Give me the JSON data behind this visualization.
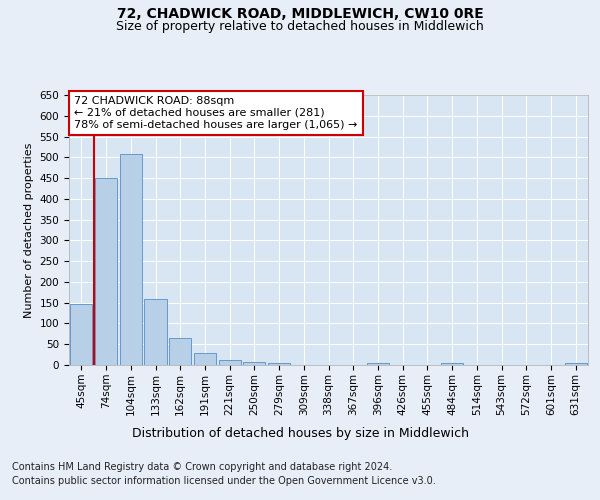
{
  "title": "72, CHADWICK ROAD, MIDDLEWICH, CW10 0RE",
  "subtitle": "Size of property relative to detached houses in Middlewich",
  "xlabel": "Distribution of detached houses by size in Middlewich",
  "ylabel": "Number of detached properties",
  "footer_line1": "Contains HM Land Registry data © Crown copyright and database right 2024.",
  "footer_line2": "Contains public sector information licensed under the Open Government Licence v3.0.",
  "categories": [
    "45sqm",
    "74sqm",
    "104sqm",
    "133sqm",
    "162sqm",
    "191sqm",
    "221sqm",
    "250sqm",
    "279sqm",
    "309sqm",
    "338sqm",
    "367sqm",
    "396sqm",
    "426sqm",
    "455sqm",
    "484sqm",
    "514sqm",
    "543sqm",
    "572sqm",
    "601sqm",
    "631sqm"
  ],
  "values": [
    148,
    450,
    507,
    158,
    65,
    30,
    13,
    7,
    5,
    0,
    0,
    0,
    5,
    0,
    0,
    5,
    0,
    0,
    0,
    0,
    5
  ],
  "bar_color": "#b8cfe8",
  "bar_edge_color": "#6699cc",
  "property_label": "72 CHADWICK ROAD: 88sqm",
  "annotation_line1": "← 21% of detached houses are smaller (281)",
  "annotation_line2": "78% of semi-detached houses are larger (1,065) →",
  "ylim_max": 650,
  "ytick_step": 50,
  "bg_color": "#e8eef8",
  "plot_bg_color": "#d8e5f3",
  "grid_color": "#ffffff",
  "annotation_box_facecolor": "#ffffff",
  "annotation_box_edge": "#cc0000",
  "red_line_color": "#cc0000",
  "title_fontsize": 10,
  "subtitle_fontsize": 9,
  "xlabel_fontsize": 9,
  "ylabel_fontsize": 8,
  "tick_fontsize": 7.5,
  "annotation_fontsize": 8,
  "footer_fontsize": 7
}
